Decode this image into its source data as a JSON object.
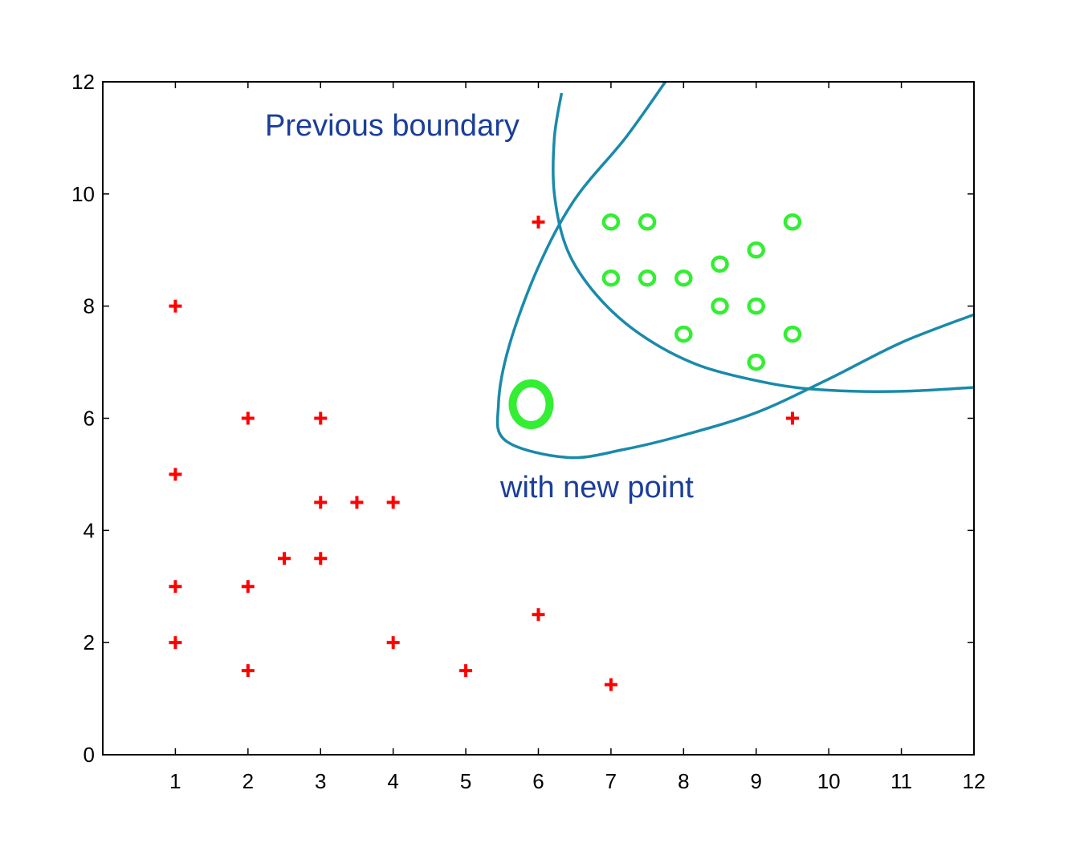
{
  "chart_data": {
    "type": "scatter",
    "xlim": [
      0,
      12
    ],
    "ylim": [
      0,
      12
    ],
    "x_ticks": [
      "1",
      "2",
      "3",
      "4",
      "5",
      "6",
      "7",
      "8",
      "9",
      "10",
      "11",
      "12"
    ],
    "y_ticks": [
      "0",
      "2",
      "4",
      "6",
      "8",
      "10",
      "12"
    ],
    "grid": false,
    "colors": {
      "plus": "#ff0000",
      "circle": "#33ee33",
      "boundary": "#1a8aaa",
      "annotation": "#1a3e9a"
    },
    "series": [
      {
        "marker": "plus",
        "points": [
          [
            1,
            8
          ],
          [
            1,
            5
          ],
          [
            1,
            3
          ],
          [
            1,
            2
          ],
          [
            2,
            6
          ],
          [
            2,
            3
          ],
          [
            2,
            1.5
          ],
          [
            2.5,
            3.5
          ],
          [
            3,
            6
          ],
          [
            3,
            4.5
          ],
          [
            3,
            3.5
          ],
          [
            3.5,
            4.5
          ],
          [
            4,
            4.5
          ],
          [
            4,
            2
          ],
          [
            5,
            1.5
          ],
          [
            6,
            9.5
          ],
          [
            6,
            2.5
          ],
          [
            7,
            1.25
          ],
          [
            9.5,
            6
          ]
        ]
      },
      {
        "marker": "circle",
        "points": [
          [
            7,
            9.5
          ],
          [
            7.5,
            9.5
          ],
          [
            9.5,
            9.5
          ],
          [
            9,
            9
          ],
          [
            8.5,
            8.75
          ],
          [
            7,
            8.5
          ],
          [
            7.5,
            8.5
          ],
          [
            8,
            8.5
          ],
          [
            8.5,
            8
          ],
          [
            9,
            8
          ],
          [
            8,
            7.5
          ],
          [
            9.5,
            7.5
          ],
          [
            9,
            7
          ]
        ]
      },
      {
        "marker": "new-circle",
        "points": [
          [
            5.9,
            6.25
          ]
        ]
      }
    ],
    "boundaries": [
      {
        "label": "Previous boundary",
        "points": [
          [
            6.32,
            11.8
          ],
          [
            6.22,
            11.0
          ],
          [
            6.22,
            10.0
          ],
          [
            6.4,
            9.0
          ],
          [
            6.8,
            8.2
          ],
          [
            7.4,
            7.5
          ],
          [
            8.2,
            6.95
          ],
          [
            9.2,
            6.62
          ],
          [
            10.0,
            6.5
          ],
          [
            11.0,
            6.48
          ],
          [
            12.0,
            6.55
          ]
        ]
      },
      {
        "label": "with new point",
        "points": [
          [
            7.75,
            12.0
          ],
          [
            7.2,
            11.0
          ],
          [
            6.5,
            9.9
          ],
          [
            6.0,
            8.7
          ],
          [
            5.6,
            7.3
          ],
          [
            5.45,
            6.25
          ],
          [
            5.55,
            5.6
          ],
          [
            6.4,
            5.3
          ],
          [
            7.2,
            5.45
          ],
          [
            8.0,
            5.7
          ],
          [
            9.0,
            6.1
          ],
          [
            10.0,
            6.7
          ],
          [
            11.0,
            7.35
          ],
          [
            12.0,
            7.85
          ]
        ]
      }
    ],
    "annotations": {
      "previous": "Previous boundary",
      "new": "with new point"
    }
  }
}
